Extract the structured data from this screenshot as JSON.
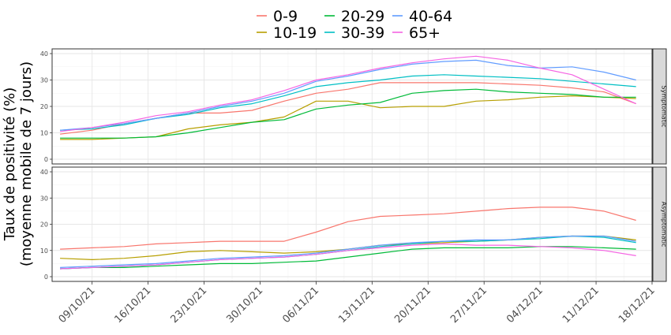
{
  "chart_data": {
    "type": "line",
    "ylabel_line1": "Taux de positivité (%)",
    "ylabel_line2": "(moyenne mobile de 7 jours)",
    "xlabel": "",
    "x_ticks": [
      "09/10/21",
      "16/10/21",
      "23/10/21",
      "30/10/21",
      "06/11/21",
      "13/11/21",
      "20/11/21",
      "27/11/21",
      "04/12/21",
      "11/12/21",
      "18/12/21"
    ],
    "x_range": [
      "2021-10-04",
      "2021-12-18"
    ],
    "y_ticks": [
      0,
      10,
      20,
      30,
      40
    ],
    "ylim": [
      0,
      40
    ],
    "grid": true,
    "legend_position": "top",
    "series_meta": [
      {
        "name": "0-9",
        "color": "#F8766D"
      },
      {
        "name": "10-19",
        "color": "#B79F00"
      },
      {
        "name": "20-29",
        "color": "#00BA38"
      },
      {
        "name": "30-39",
        "color": "#00BFC4"
      },
      {
        "name": "40-64",
        "color": "#619CFF"
      },
      {
        "name": "65+",
        "color": "#F564E3"
      }
    ],
    "panels": [
      {
        "strip": "Symptomatic",
        "x": [
          "2021-10-05",
          "2021-10-09",
          "2021-10-13",
          "2021-10-17",
          "2021-10-21",
          "2021-10-25",
          "2021-10-29",
          "2021-11-02",
          "2021-11-06",
          "2021-11-10",
          "2021-11-14",
          "2021-11-18",
          "2021-11-22",
          "2021-11-26",
          "2021-11-30",
          "2021-12-04",
          "2021-12-08",
          "2021-12-12",
          "2021-12-16"
        ],
        "series": [
          {
            "name": "0-9",
            "values": [
              9.5,
              11.0,
              13.5,
              15.5,
              17.5,
              17.5,
              18.5,
              22.0,
              25.0,
              26.5,
              29.0,
              29.0,
              29.0,
              29.0,
              28.5,
              28.0,
              27.0,
              25.5,
              21.0
            ]
          },
          {
            "name": "10-19",
            "values": [
              7.5,
              7.5,
              8.0,
              8.5,
              11.5,
              13.0,
              14.0,
              16.0,
              22.0,
              22.0,
              19.5,
              20.0,
              20.0,
              22.0,
              22.5,
              23.5,
              24.0,
              23.5,
              23.0
            ]
          },
          {
            "name": "20-29",
            "values": [
              8.0,
              8.0,
              8.0,
              8.5,
              10.0,
              12.0,
              14.0,
              15.0,
              19.0,
              20.5,
              21.5,
              25.0,
              26.0,
              26.5,
              25.5,
              25.0,
              24.5,
              23.5,
              23.5
            ]
          },
          {
            "name": "30-39",
            "values": [
              11.0,
              11.5,
              13.0,
              15.5,
              17.0,
              19.5,
              21.0,
              24.0,
              27.5,
              29.0,
              30.0,
              31.5,
              32.0,
              31.5,
              31.0,
              30.5,
              29.5,
              28.5,
              27.5
            ]
          },
          {
            "name": "40-64",
            "values": [
              11.0,
              12.0,
              13.5,
              15.5,
              17.5,
              20.0,
              22.0,
              25.0,
              29.5,
              31.5,
              34.0,
              36.0,
              37.0,
              37.5,
              35.5,
              34.5,
              35.0,
              33.0,
              30.0
            ]
          },
          {
            "name": "65+",
            "values": [
              10.5,
              12.0,
              14.0,
              16.5,
              18.0,
              20.5,
              22.5,
              26.0,
              30.0,
              32.0,
              34.5,
              36.5,
              38.0,
              39.0,
              37.5,
              34.5,
              32.0,
              26.5,
              21.0
            ]
          }
        ]
      },
      {
        "strip": "Asymptomatic",
        "x": [
          "2021-10-05",
          "2021-10-09",
          "2021-10-13",
          "2021-10-17",
          "2021-10-21",
          "2021-10-25",
          "2021-10-29",
          "2021-11-02",
          "2021-11-06",
          "2021-11-10",
          "2021-11-14",
          "2021-11-18",
          "2021-11-22",
          "2021-11-26",
          "2021-11-30",
          "2021-12-04",
          "2021-12-08",
          "2021-12-12",
          "2021-12-16"
        ],
        "series": [
          {
            "name": "0-9",
            "values": [
              10.5,
              11.0,
              11.5,
              12.5,
              13.0,
              13.5,
              13.5,
              13.5,
              17.0,
              21.0,
              23.0,
              23.5,
              24.0,
              25.0,
              26.0,
              26.5,
              26.5,
              25.0,
              21.5
            ]
          },
          {
            "name": "10-19",
            "values": [
              7.0,
              6.5,
              7.0,
              8.0,
              9.5,
              10.0,
              9.5,
              9.0,
              9.5,
              10.5,
              12.0,
              12.5,
              13.0,
              13.5,
              14.0,
              15.0,
              15.5,
              15.5,
              14.0
            ]
          },
          {
            "name": "20-29",
            "values": [
              3.0,
              3.5,
              3.5,
              4.0,
              4.5,
              5.0,
              5.0,
              5.5,
              6.0,
              7.5,
              9.0,
              10.5,
              11.0,
              11.0,
              11.0,
              11.5,
              11.5,
              11.0,
              10.5
            ]
          },
          {
            "name": "30-39",
            "values": [
              3.0,
              3.5,
              4.0,
              4.5,
              5.5,
              6.5,
              7.0,
              7.5,
              8.5,
              10.0,
              11.5,
              12.5,
              13.5,
              13.5,
              14.0,
              14.5,
              15.5,
              15.0,
              13.0
            ]
          },
          {
            "name": "40-64",
            "values": [
              3.5,
              4.0,
              4.5,
              5.0,
              6.0,
              7.0,
              7.5,
              8.0,
              9.0,
              10.5,
              12.0,
              13.0,
              13.5,
              14.0,
              14.0,
              15.0,
              15.5,
              15.5,
              13.5
            ]
          },
          {
            "name": "65+",
            "values": [
              3.0,
              3.5,
              4.0,
              4.5,
              5.5,
              6.5,
              7.0,
              7.5,
              8.5,
              10.0,
              11.0,
              12.0,
              12.5,
              12.0,
              12.0,
              11.5,
              11.0,
              10.0,
              8.0
            ]
          }
        ]
      }
    ]
  }
}
